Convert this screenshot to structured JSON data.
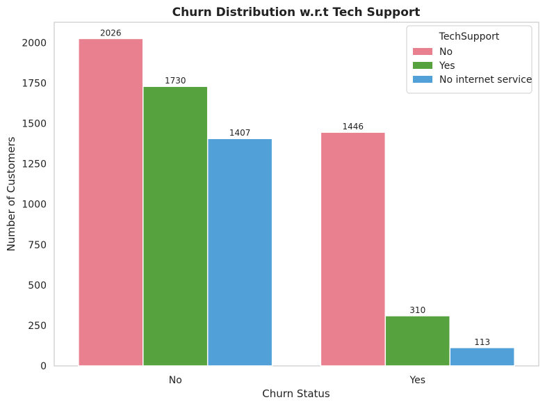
{
  "chart_data": {
    "type": "bar",
    "title": "Churn Distribution w.r.t Tech Support",
    "xlabel": "Churn Status",
    "ylabel": "Number of Customers",
    "categories": [
      "No",
      "Yes"
    ],
    "ylim": [
      0,
      2127
    ],
    "yticks": [
      0,
      250,
      500,
      750,
      1000,
      1250,
      1500,
      1750,
      2000
    ],
    "grid": false,
    "legend": {
      "title": "TechSupport",
      "placement": "top-right"
    },
    "series": [
      {
        "name": "No",
        "color": "#E8808F",
        "values": [
          2026,
          1446
        ]
      },
      {
        "name": "Yes",
        "color": "#56A23F",
        "values": [
          1730,
          310
        ]
      },
      {
        "name": "No internet service",
        "color": "#52A0D8",
        "values": [
          1407,
          113
        ]
      }
    ]
  }
}
